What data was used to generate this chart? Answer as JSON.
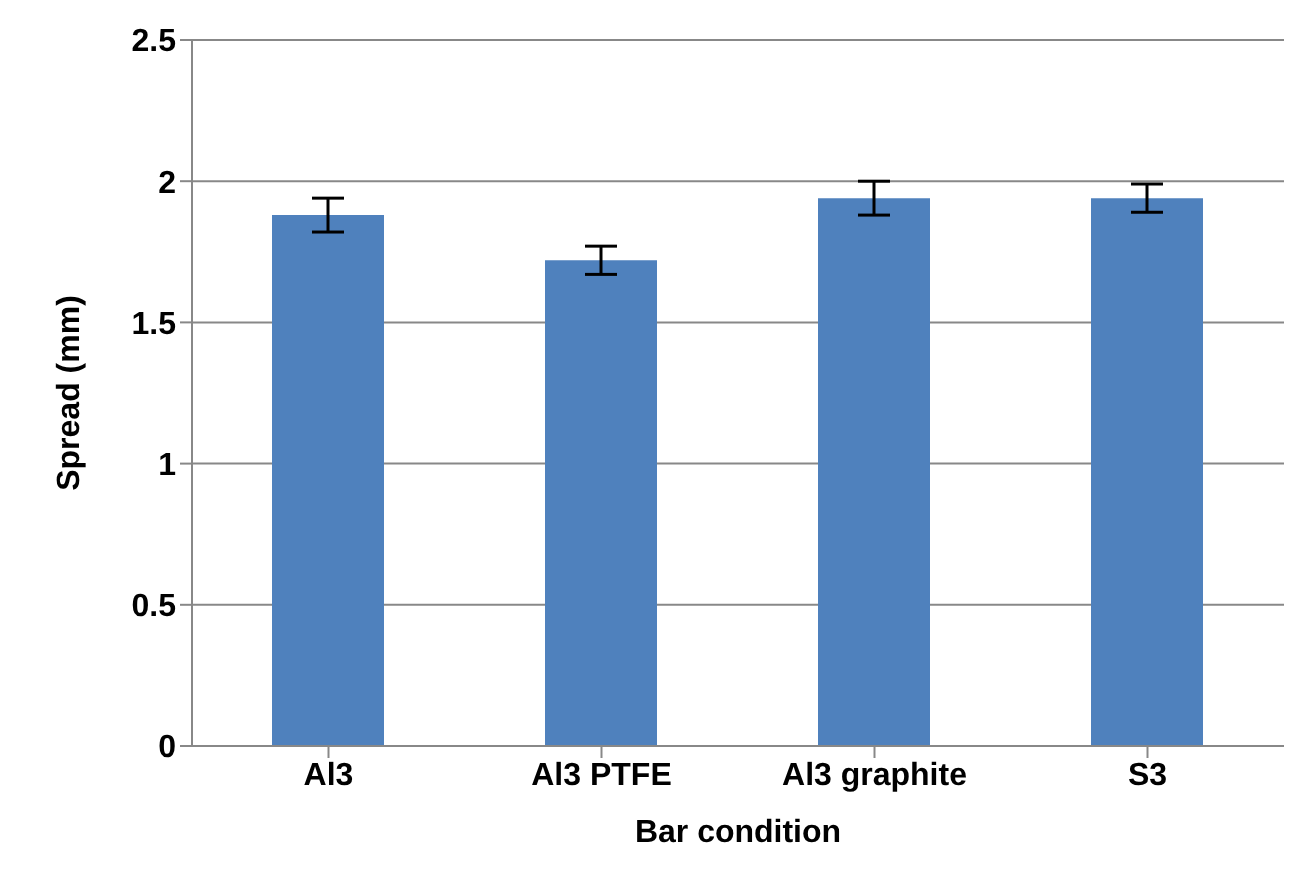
{
  "chart_data": {
    "type": "bar",
    "xlabel": "Bar condition",
    "ylabel": "Spread (mm)",
    "categories": [
      "Al3",
      "Al3 PTFE",
      "Al3 graphite",
      "S3"
    ],
    "values": [
      1.88,
      1.72,
      1.94,
      1.94
    ],
    "errors": [
      0.06,
      0.05,
      0.06,
      0.05
    ],
    "color": "#4f81bd",
    "ylim": [
      0,
      2.5
    ],
    "yticks": [
      0,
      0.5,
      1,
      1.5,
      2,
      2.5
    ],
    "grid": "y"
  }
}
